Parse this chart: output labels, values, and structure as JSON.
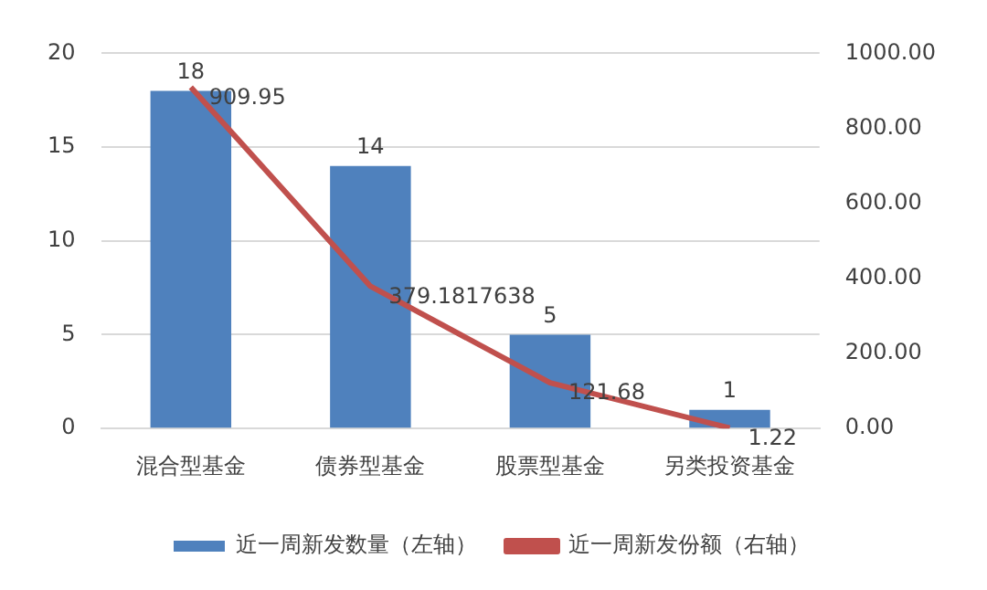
{
  "chart_data": {
    "type": "bar",
    "categories": [
      "混合型基金",
      "债券型基金",
      "股票型基金",
      "另类投资基金"
    ],
    "series": [
      {
        "name": "近一周新发数量（左轴）",
        "color": "#4f81bd",
        "values": [
          18,
          14,
          5,
          1
        ]
      },
      {
        "name": "近一周新发份额（右轴）",
        "type": "line",
        "axis": "y2",
        "color": "#c0504d",
        "values": [
          909.95,
          379.1817638,
          121.68,
          1.22
        ]
      }
    ],
    "ylim": [
      0,
      20
    ],
    "yticks": [
      0,
      5,
      10,
      15,
      20
    ],
    "y2lim": [
      0,
      1000
    ],
    "y2ticks": [
      {
        "value": 0,
        "label": "0.00"
      },
      {
        "value": 200,
        "label": "200.00"
      },
      {
        "value": 400,
        "label": "400.00"
      },
      {
        "value": 600,
        "label": "600.00"
      },
      {
        "value": 800,
        "label": "800.00"
      },
      {
        "value": 1000,
        "label": "1000.00"
      }
    ],
    "grid": "y",
    "legend": "bottom",
    "data_labels": true,
    "marker": "none"
  }
}
